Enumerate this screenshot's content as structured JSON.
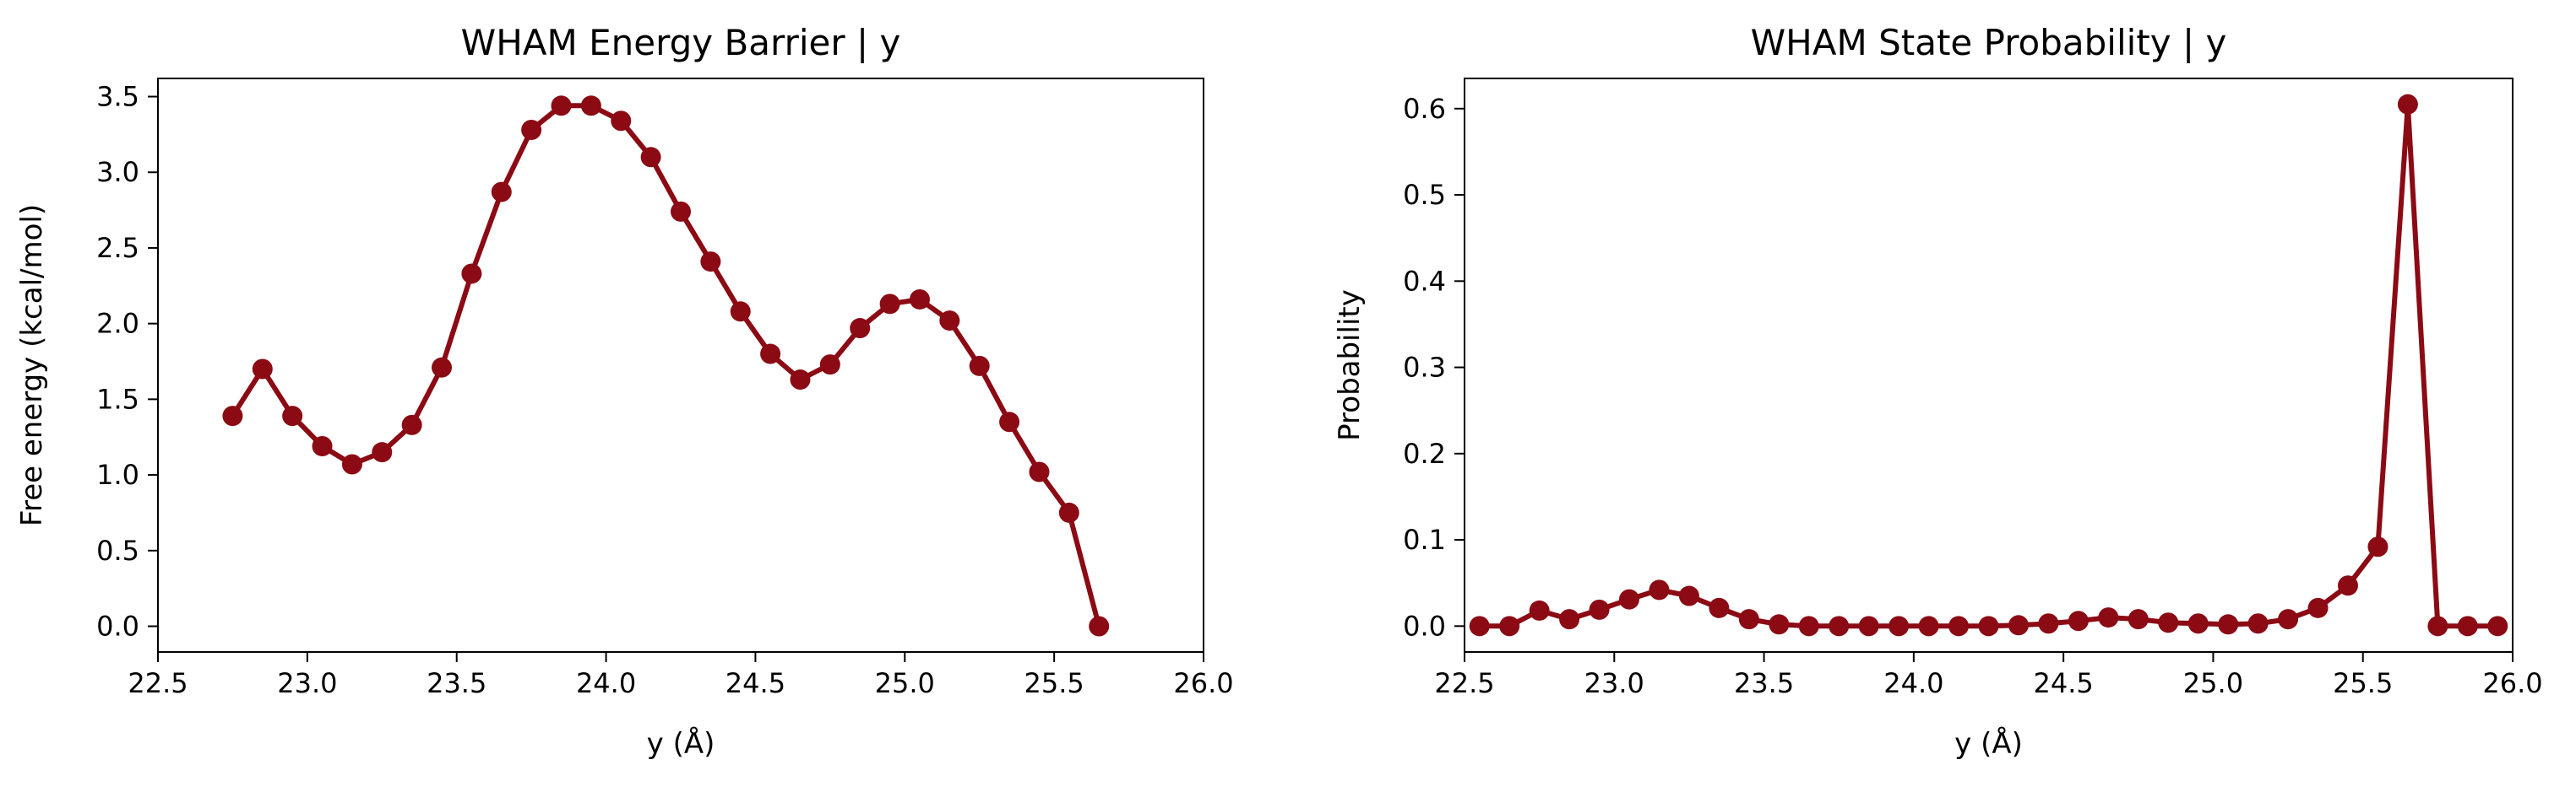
{
  "colors": {
    "series": "#8b0a14"
  },
  "chart_data": [
    {
      "type": "line",
      "title": "WHAM Energy Barrier | y",
      "xlabel": "y (Å)",
      "ylabel": "Free energy (kcal/mol)",
      "xlim": [
        22.5,
        26.0
      ],
      "ylim": [
        -0.17,
        3.62
      ],
      "xticks": [
        "22.5",
        "23.0",
        "23.5",
        "24.0",
        "24.5",
        "25.0",
        "25.5",
        "26.0"
      ],
      "yticks": [
        "0.0",
        "0.5",
        "1.0",
        "1.5",
        "2.0",
        "2.5",
        "3.0",
        "3.5"
      ],
      "grid": false,
      "x": [
        22.75,
        22.85,
        22.95,
        23.05,
        23.15,
        23.25,
        23.35,
        23.45,
        23.55,
        23.65,
        23.75,
        23.85,
        23.95,
        24.05,
        24.15,
        24.25,
        24.35,
        24.45,
        24.55,
        24.65,
        24.75,
        24.85,
        24.95,
        25.05,
        25.15,
        25.25,
        25.35,
        25.45,
        25.55,
        25.65
      ],
      "y": [
        1.39,
        1.7,
        1.39,
        1.19,
        1.07,
        1.15,
        1.33,
        1.71,
        2.33,
        2.87,
        3.28,
        3.44,
        3.44,
        3.34,
        3.1,
        2.74,
        2.41,
        2.08,
        1.8,
        1.63,
        1.73,
        1.97,
        2.13,
        2.16,
        2.02,
        1.72,
        1.35,
        1.02,
        0.75,
        0.0
      ]
    },
    {
      "type": "line",
      "title": "WHAM State Probability | y",
      "xlabel": "y (Å)",
      "ylabel": "Probability",
      "xlim": [
        22.5,
        26.0
      ],
      "ylim": [
        -0.03,
        0.635
      ],
      "xticks": [
        "22.5",
        "23.0",
        "23.5",
        "24.0",
        "24.5",
        "25.0",
        "25.5",
        "26.0"
      ],
      "yticks": [
        "0.0",
        "0.1",
        "0.2",
        "0.3",
        "0.4",
        "0.5",
        "0.6"
      ],
      "grid": false,
      "x": [
        22.55,
        22.65,
        22.75,
        22.85,
        22.95,
        23.05,
        23.15,
        23.25,
        23.35,
        23.45,
        23.55,
        23.65,
        23.75,
        23.85,
        23.95,
        24.05,
        24.15,
        24.25,
        24.35,
        24.45,
        24.55,
        24.65,
        24.75,
        24.85,
        24.95,
        25.05,
        25.15,
        25.25,
        25.35,
        25.45,
        25.55,
        25.65,
        25.75,
        25.85,
        25.95
      ],
      "y": [
        0.0,
        0.0,
        0.018,
        0.008,
        0.019,
        0.031,
        0.042,
        0.035,
        0.021,
        0.008,
        0.002,
        0.0,
        0.0,
        0.0,
        0.0,
        0.0,
        0.0,
        0.0,
        0.001,
        0.003,
        0.006,
        0.01,
        0.008,
        0.004,
        0.003,
        0.002,
        0.003,
        0.008,
        0.021,
        0.047,
        0.092,
        0.605,
        0.0,
        0.0,
        0.0
      ]
    }
  ]
}
